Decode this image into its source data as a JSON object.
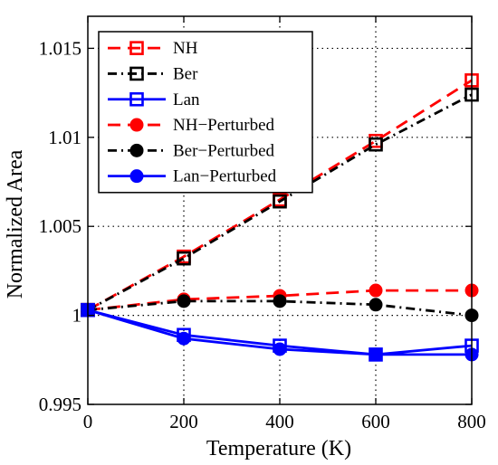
{
  "chart_data": {
    "type": "line",
    "title": "",
    "xlabel": "Temperature (K)",
    "ylabel": "Normalized Area",
    "xlim": [
      0,
      800
    ],
    "ylim": [
      0.995,
      1.0168
    ],
    "xticks": [
      0,
      200,
      400,
      600,
      800
    ],
    "xtick_labels": [
      "0",
      "200",
      "400",
      "600",
      "800"
    ],
    "yticks": [
      0.995,
      1.0,
      1.005,
      1.01,
      1.015
    ],
    "ytick_labels": [
      "0.995",
      "1",
      "1.005",
      "1.01",
      "1.015"
    ],
    "grid": true,
    "grid_style": "dotted",
    "legend_position": "top-left",
    "x": [
      0,
      200,
      400,
      600,
      800
    ],
    "series": [
      {
        "name": "NH",
        "values": [
          1.0003,
          1.0033,
          1.0065,
          1.0098,
          1.0132
        ],
        "color": "#ff0000",
        "dash": "dashed",
        "marker": "square-open"
      },
      {
        "name": "Ber",
        "values": [
          1.0003,
          1.0032,
          1.0064,
          1.0096,
          1.0124
        ],
        "color": "#000000",
        "dash": "dashdot",
        "marker": "square-open"
      },
      {
        "name": "Lan",
        "values": [
          1.0003,
          0.9989,
          0.9983,
          0.9978,
          0.9983
        ],
        "color": "#0000ff",
        "dash": "solid",
        "marker": "square-open"
      },
      {
        "name": "NH−Perturbed",
        "values": [
          1.0003,
          1.0009,
          1.0011,
          1.0014,
          1.0014
        ],
        "color": "#ff0000",
        "dash": "dashed",
        "marker": "circle-filled"
      },
      {
        "name": "Ber−Perturbed",
        "values": [
          1.0003,
          1.0008,
          1.0008,
          1.0006,
          1.0
        ],
        "color": "#000000",
        "dash": "dashdot",
        "marker": "circle-filled"
      },
      {
        "name": "Lan−Perturbed",
        "values": [
          1.0003,
          0.9987,
          0.9981,
          0.9978,
          0.9978
        ],
        "color": "#0000ff",
        "dash": "solid",
        "marker": "circle-filled"
      }
    ]
  }
}
